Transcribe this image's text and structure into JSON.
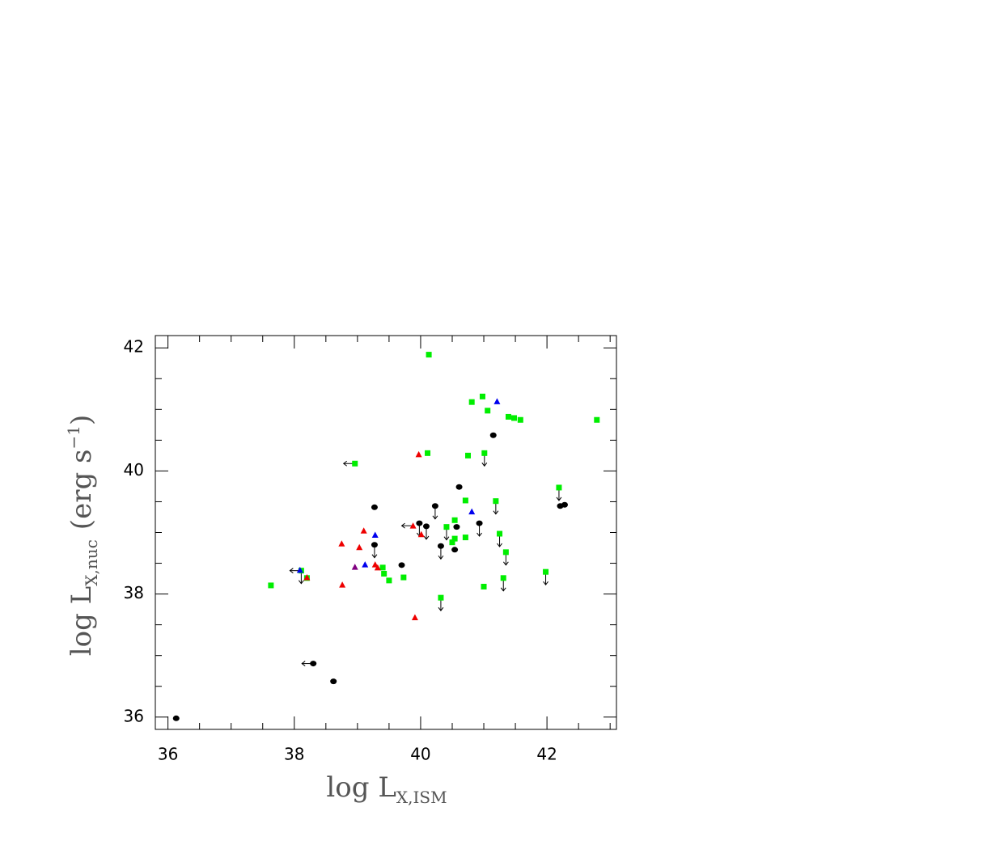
{
  "chart_data": {
    "type": "scatter",
    "xlabel": "log L",
    "xlabel_sub": "X,ISM",
    "ylabel": "log L",
    "ylabel_sub": "X,nuc",
    "ylabel_unit": "(erg s",
    "ylabel_sup": "−1",
    "ylabel_end": ")",
    "xlim": [
      35.8,
      43.1
    ],
    "ylim": [
      35.8,
      42.2
    ],
    "xticks": [
      36,
      38,
      40,
      42
    ],
    "yticks": [
      36,
      38,
      40,
      42
    ],
    "xminorticks": [
      36.5,
      37,
      37.5,
      38.5,
      39,
      39.5,
      40.5,
      41,
      41.5,
      42.5,
      43
    ],
    "yminorticks": [
      36.5,
      37,
      37.5,
      38.5,
      39,
      39.5,
      40.5,
      41,
      41.5
    ],
    "series": [
      {
        "marker": "square",
        "color": "#00ee00",
        "x": [
          37.63,
          38.11,
          38.2,
          38.96,
          39.4,
          39.42,
          39.5,
          39.73,
          40.13,
          40.11,
          40.41,
          40.5,
          40.54,
          40.54,
          40.71,
          40.71,
          40.75,
          40.81,
          40.98,
          41.06,
          41.01,
          41.0,
          41.19,
          41.25,
          41.35,
          41.31,
          41.39,
          41.48,
          41.58,
          40.32,
          41.98,
          42.19,
          42.79
        ],
        "values": [
          38.14,
          38.38,
          38.26,
          40.12,
          38.43,
          38.33,
          38.22,
          38.27,
          41.89,
          40.29,
          39.09,
          38.84,
          38.9,
          39.2,
          38.92,
          39.52,
          40.25,
          41.12,
          41.21,
          40.98,
          40.29,
          38.12,
          39.51,
          38.98,
          38.68,
          38.26,
          40.88,
          40.86,
          40.83,
          37.94,
          38.36,
          39.73,
          40.83
        ],
        "y_upper_limit": [
          1,
          10,
          20,
          22,
          23,
          24,
          25,
          29,
          30,
          31
        ],
        "x_upper_limit": [
          1,
          3
        ]
      },
      {
        "marker": "circle",
        "color": "#000000",
        "x": [
          36.13,
          38.3,
          38.62,
          39.27,
          39.27,
          39.7,
          39.98,
          40.09,
          40.23,
          40.32,
          40.54,
          40.57,
          40.61,
          40.93,
          41.15,
          42.21,
          42.28
        ],
        "values": [
          35.98,
          36.87,
          36.58,
          39.41,
          38.8,
          38.47,
          39.15,
          39.1,
          39.43,
          38.78,
          38.72,
          39.09,
          39.74,
          39.15,
          40.58,
          39.43,
          39.45
        ],
        "y_upper_limit": [
          4,
          6,
          7,
          8,
          9,
          13
        ],
        "x_upper_limit": [
          1
        ]
      },
      {
        "marker": "triangle",
        "color": "#ee0000",
        "x": [
          38.2,
          38.75,
          38.76,
          39.03,
          39.1,
          39.28,
          39.32,
          39.91,
          39.88,
          39.97,
          40.01
        ],
        "values": [
          38.27,
          38.82,
          38.15,
          38.76,
          39.03,
          38.48,
          38.43,
          37.62,
          39.11,
          40.27,
          38.97
        ],
        "y_upper_limit": [],
        "x_upper_limit": [
          8
        ]
      },
      {
        "marker": "triangle",
        "color": "#0000ee",
        "x": [
          38.09,
          39.12,
          39.28,
          40.81,
          41.21
        ],
        "values": [
          38.39,
          38.48,
          38.96,
          39.34,
          41.13
        ],
        "y_upper_limit": [],
        "x_upper_limit": []
      },
      {
        "marker": "triangle",
        "color": "#800080",
        "x": [
          38.96
        ],
        "values": [
          38.44
        ],
        "y_upper_limit": [],
        "x_upper_limit": []
      }
    ]
  }
}
